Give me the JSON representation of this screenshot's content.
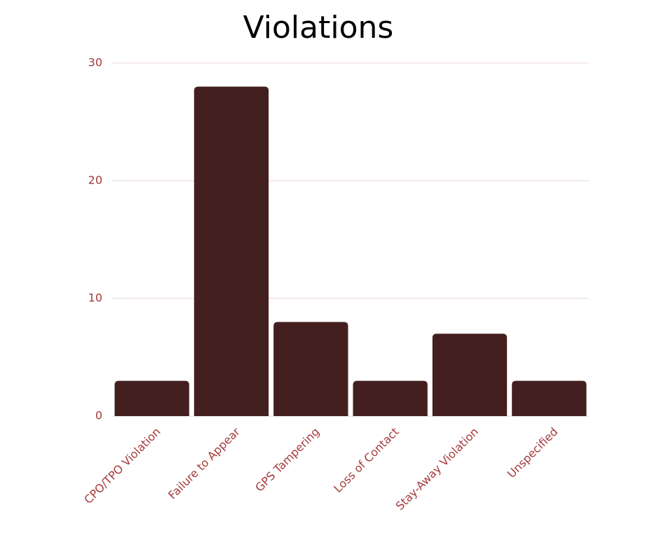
{
  "chart_data": {
    "type": "bar",
    "title": "Violations",
    "categories": [
      "CPO/TPO Violation",
      "Failure to Appear",
      "GPS Tampering",
      "Loss of Contact",
      "Stay-Away Violation",
      "Unspecified"
    ],
    "values": [
      3,
      28,
      8,
      3,
      7,
      3
    ],
    "color": "#43201f",
    "ylim": [
      0,
      30
    ],
    "yticks": [
      0,
      10,
      20,
      30
    ],
    "grid": true
  }
}
